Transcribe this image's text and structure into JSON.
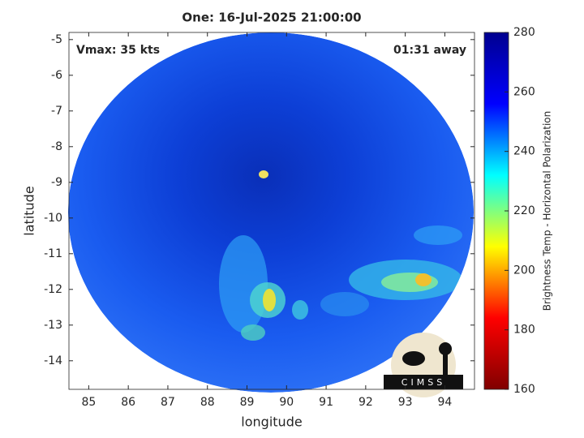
{
  "chart_data": {
    "type": "image",
    "title": "One: 16-Jul-2025 21:00:00",
    "annotations": [
      "Vmax: 35 kts",
      "01:31 away"
    ],
    "xlabel": "longitude",
    "ylabel": "latitude",
    "xlim": [
      84.5,
      94.75
    ],
    "xticks": [
      85,
      86,
      87,
      88,
      89,
      90,
      91,
      92,
      93,
      94
    ],
    "ylim": [
      -14.8,
      -4.8
    ],
    "yticks": [
      -14,
      -13,
      -12,
      -11,
      -10,
      -9,
      -8,
      -7,
      -6,
      -5
    ],
    "colorbar": {
      "label": "Brightness Temp - Horizontal Polarization",
      "lim": [
        160,
        280
      ],
      "ticks": [
        160,
        180,
        200,
        220,
        240,
        260,
        280
      ],
      "colormap": [
        "#800000",
        "#ff0000",
        "#ffff00",
        "#00ffff",
        "#0000ff",
        "#00008f"
      ]
    },
    "logo_text": "CIMSS"
  }
}
